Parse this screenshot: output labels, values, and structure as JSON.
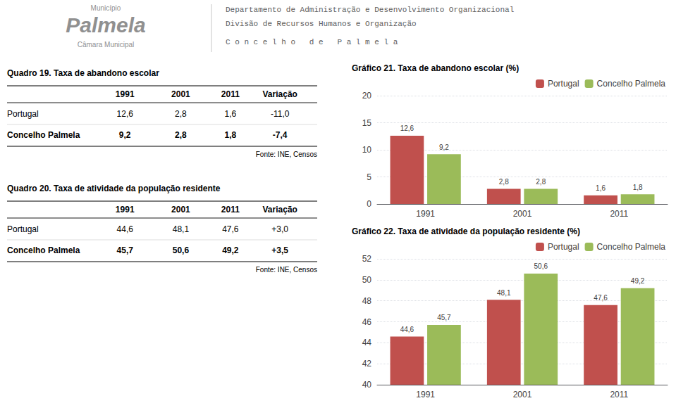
{
  "header": [
    "Município",
    "Palmela",
    "Câmara Municipal",
    "Departamento de Administração e Desenvolvimento Organizacional",
    "Divisão de Recursos Humanos e Organização",
    "C o n c e l h o   d e   P a l m e l a"
  ],
  "chart_data": [
    {
      "type": "table",
      "title": "Quadro 19. Taxa de abandono escolar",
      "columns": [
        "1991",
        "2001",
        "2011",
        "Variação"
      ],
      "rows": [
        [
          "Portugal",
          "12,6",
          "2,8",
          "1,6",
          "-11,0"
        ],
        [
          "Concelho Palmela",
          "9,2",
          "2,8",
          "1,8",
          "-7,4"
        ]
      ],
      "source": "Fonte: INE, Censos"
    },
    {
      "type": "table",
      "title": "Quadro 20. Taxa de atividade da população residente",
      "columns": [
        "1991",
        "2001",
        "2011",
        "Variação"
      ],
      "rows": [
        [
          "Portugal",
          "44,6",
          "48,1",
          "47,6",
          "+3,0"
        ],
        [
          "Concelho Palmela",
          "45,7",
          "50,6",
          "49,2",
          "+3,5"
        ]
      ],
      "source": "Fonte: INE, Censos"
    },
    {
      "type": "bar",
      "title": "Gráfico 21. Taxa de abandono escolar (%)",
      "categories": [
        "1991",
        "2001",
        "2011"
      ],
      "series": [
        {
          "name": "Portugal",
          "color": "#c0504d",
          "values": [
            12.6,
            2.8,
            1.6
          ],
          "value_labels": [
            "12,6",
            "2,8",
            "1,6"
          ]
        },
        {
          "name": "Concelho Palmela",
          "color": "#9bbb59",
          "values": [
            9.2,
            2.8,
            1.8
          ],
          "value_labels": [
            "9,2",
            "2,8",
            "1,8"
          ]
        }
      ],
      "ylim": [
        0,
        20
      ],
      "yticks": [
        0,
        5,
        10,
        15,
        20
      ],
      "grid": true,
      "legend": "upper right",
      "data_labels": true
    },
    {
      "type": "bar",
      "title": "Gráfico 22. Taxa de atividade da população residente (%)",
      "categories": [
        "1991",
        "2001",
        "2011"
      ],
      "series": [
        {
          "name": "Portugal",
          "color": "#c0504d",
          "values": [
            44.6,
            48.1,
            47.6
          ],
          "value_labels": [
            "44,6",
            "48,1",
            "47,6"
          ]
        },
        {
          "name": "Concelho Palmela",
          "color": "#9bbb59",
          "values": [
            45.7,
            50.6,
            49.2
          ],
          "value_labels": [
            "45,7",
            "50,6",
            "49,2"
          ]
        }
      ],
      "ylim": [
        40,
        52
      ],
      "yticks": [
        40,
        42,
        44,
        46,
        48,
        50,
        52
      ],
      "grid": true,
      "legend": "upper right",
      "data_labels": true
    }
  ]
}
